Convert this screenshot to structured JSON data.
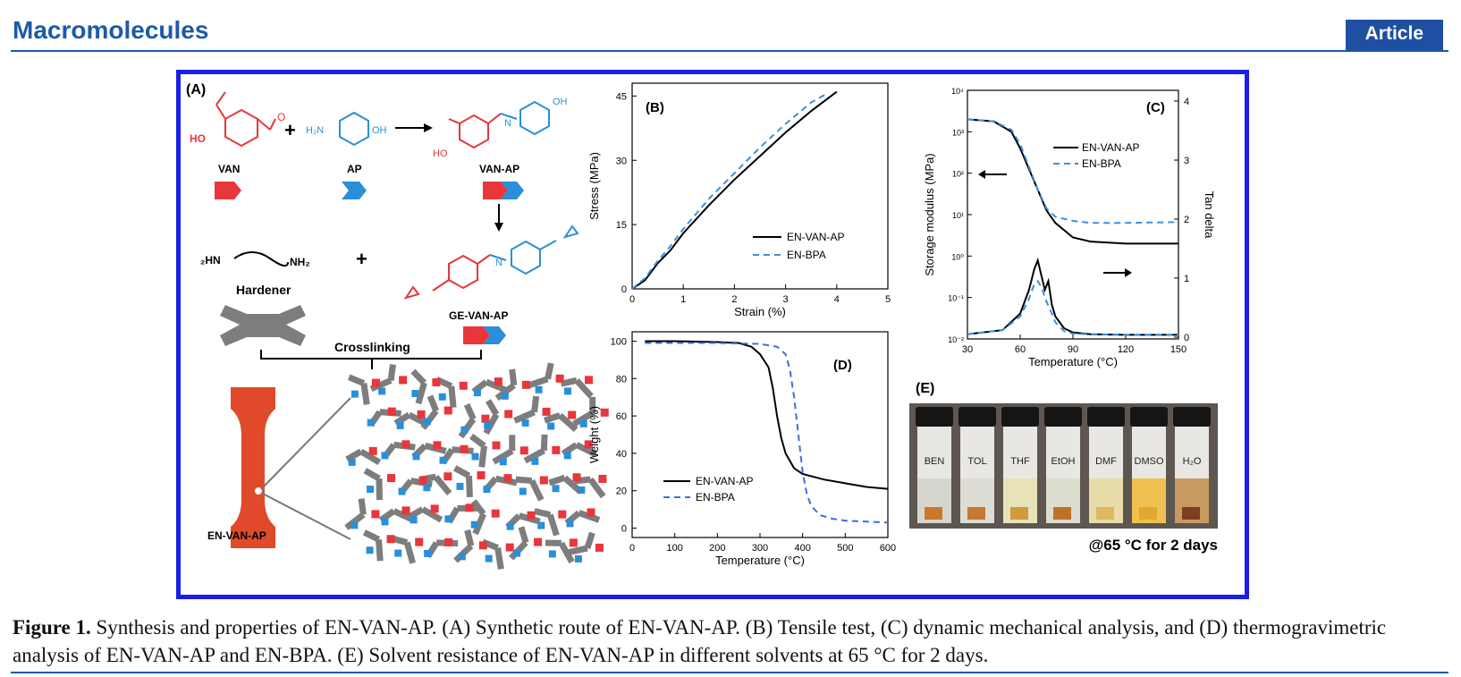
{
  "header": {
    "journal": "Macromolecules",
    "badge": "Article"
  },
  "panelA": {
    "label": "(A)",
    "van": "VAN",
    "ap": "AP",
    "vanap": "VAN-AP",
    "hardener": "Hardener",
    "gevanap": "GE-VAN-AP",
    "crosslinking": "Crosslinking",
    "envanap": "EN-VAN-AP",
    "ho": "HO",
    "oh": "OH",
    "h2n": "H₂N",
    "nh2": "NH₂",
    "hn2": "₂HN",
    "n": "N",
    "o": "O",
    "colors": {
      "red": "#e8363a",
      "blue": "#2a8fd8",
      "gray": "#7d7d7d"
    }
  },
  "chart_data": [
    {
      "id": "B",
      "type": "line",
      "panel_label": "(B)",
      "xlabel": "Strain (%)",
      "ylabel": "Stress (MPa)",
      "xlim": [
        0,
        5
      ],
      "ylim": [
        0,
        48
      ],
      "xticks": [
        "0",
        "1",
        "2",
        "3",
        "4",
        "5"
      ],
      "yticks": [
        "0",
        "15",
        "30",
        "45"
      ],
      "series": [
        {
          "name": "EN-VAN-AP",
          "x": [
            0,
            0.25,
            0.5,
            0.75,
            1,
            1.5,
            2,
            2.5,
            3,
            3.5,
            4
          ],
          "y": [
            0,
            2,
            6,
            9,
            13,
            19.5,
            25.5,
            31,
            36.5,
            41.5,
            46
          ]
        },
        {
          "name": "EN-BPA",
          "x": [
            0,
            0.25,
            0.5,
            0.75,
            1,
            1.5,
            2,
            2.5,
            3,
            3.5,
            3.8
          ],
          "y": [
            0,
            2.5,
            6.5,
            10,
            14,
            21,
            27,
            33,
            38.5,
            43.5,
            45.5
          ]
        }
      ],
      "legend": "center-right"
    },
    {
      "id": "C",
      "type": "line",
      "panel_label": "(C)",
      "xlabel": "Temperature (°C)",
      "ylabel": "Storage modulus (MPa)",
      "y2label": "Tan delta",
      "xlim": [
        30,
        150
      ],
      "xticks": [
        "30",
        "60",
        "90",
        "120",
        "150"
      ],
      "yticks": [
        "10⁻²",
        "10⁻¹",
        "10⁰",
        "10¹",
        "10²",
        "10³",
        "10⁴"
      ],
      "y2ticks": [
        "0",
        "1",
        "2",
        "3",
        "4"
      ],
      "series": [
        {
          "name": "EN-VAN-AP",
          "axis": "left-log",
          "x": [
            30,
            45,
            55,
            60,
            65,
            70,
            75,
            80,
            90,
            100,
            120,
            150
          ],
          "y": [
            3.3,
            3.25,
            3.0,
            2.6,
            2.1,
            1.6,
            1.1,
            0.8,
            0.45,
            0.35,
            0.3,
            0.3
          ]
        },
        {
          "name": "EN-BPA",
          "axis": "left-log",
          "x": [
            30,
            45,
            55,
            60,
            65,
            70,
            75,
            80,
            90,
            100,
            120,
            150
          ],
          "y": [
            3.3,
            3.25,
            3.05,
            2.7,
            2.15,
            1.6,
            1.15,
            0.95,
            0.85,
            0.8,
            0.8,
            0.82
          ]
        },
        {
          "name": "EN-VAN-AP tan delta",
          "axis": "right",
          "x": [
            30,
            50,
            60,
            65,
            68,
            70,
            72,
            74,
            76,
            78,
            80,
            85,
            90,
            100,
            120,
            150
          ],
          "y": [
            0.05,
            0.12,
            0.4,
            0.8,
            1.15,
            1.3,
            1.05,
            0.8,
            0.95,
            0.55,
            0.35,
            0.15,
            0.08,
            0.05,
            0.04,
            0.04
          ]
        },
        {
          "name": "EN-BPA tan delta",
          "axis": "right",
          "x": [
            30,
            50,
            60,
            65,
            68,
            70,
            72,
            75,
            78,
            80,
            85,
            90,
            100,
            120,
            150
          ],
          "y": [
            0.05,
            0.12,
            0.35,
            0.65,
            0.9,
            0.95,
            0.85,
            0.6,
            0.4,
            0.25,
            0.1,
            0.06,
            0.05,
            0.04,
            0.04
          ]
        }
      ],
      "legend": "top-right"
    },
    {
      "id": "D",
      "type": "line",
      "panel_label": "(D)",
      "xlabel": "Temperature (°C)",
      "ylabel": "Weight (%)",
      "xlim": [
        0,
        600
      ],
      "ylim": [
        -5,
        105
      ],
      "xticks": [
        "0",
        "100",
        "200",
        "300",
        "400",
        "500",
        "600"
      ],
      "yticks": [
        "0",
        "20",
        "40",
        "60",
        "80",
        "100"
      ],
      "series": [
        {
          "name": "EN-VAN-AP",
          "x": [
            30,
            100,
            200,
            250,
            280,
            300,
            320,
            330,
            340,
            350,
            360,
            370,
            380,
            400,
            450,
            500,
            550,
            600
          ],
          "y": [
            100,
            100,
            99.5,
            99,
            97,
            93,
            86,
            75,
            60,
            48,
            40,
            36,
            32,
            29,
            26,
            24,
            22,
            21
          ]
        },
        {
          "name": "EN-BPA",
          "x": [
            30,
            100,
            200,
            300,
            340,
            360,
            370,
            380,
            390,
            400,
            410,
            420,
            440,
            470,
            500,
            550,
            600
          ],
          "y": [
            99,
            99,
            99,
            98.5,
            97,
            93,
            85,
            70,
            50,
            30,
            18,
            12,
            7,
            5,
            4,
            3.5,
            3
          ]
        }
      ],
      "legend": "bottom-left"
    }
  ],
  "panelE": {
    "label": "(E)",
    "vials": [
      "BEN",
      "TOL",
      "THF",
      "EtOH",
      "DMF",
      "DMSO",
      "H₂O"
    ],
    "note": "@65 °C for 2 days"
  },
  "caption": {
    "lead": "Figure 1.",
    "text": " Synthesis and properties of EN-VAN-AP. (A) Synthetic route of EN-VAN-AP. (B) Tensile test, (C) dynamic mechanical analysis, and (D) thermogravimetric analysis of EN-VAN-AP and EN-BPA. (E) Solvent resistance of EN-VAN-AP in different solvents at 65 °C for 2 days."
  }
}
